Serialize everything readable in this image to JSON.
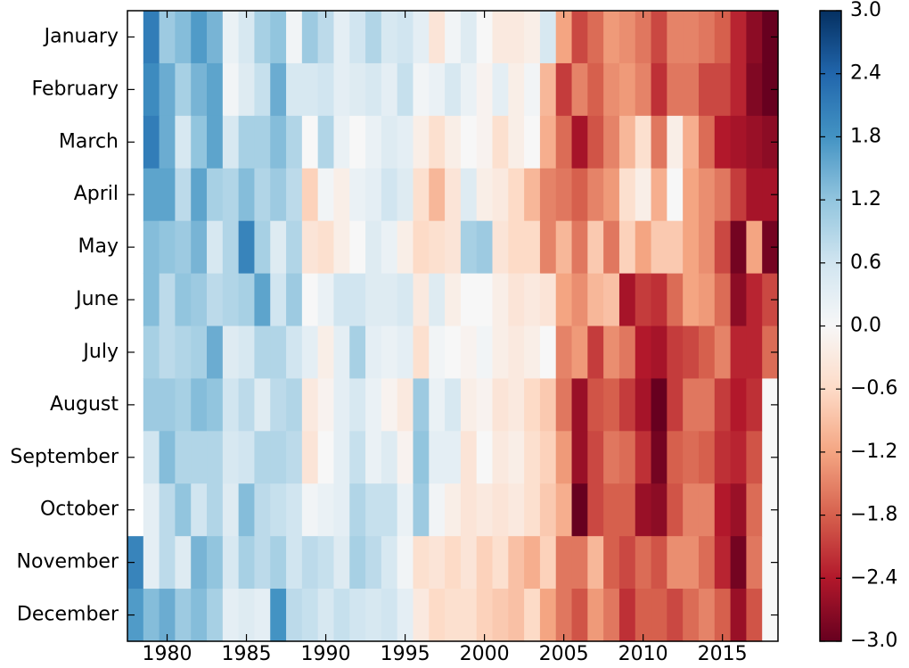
{
  "chart_data": {
    "type": "heatmap",
    "title": "",
    "xlabel": "",
    "ylabel": "",
    "x_range": [
      1978,
      2018
    ],
    "x_ticks": [
      "1980",
      "1985",
      "1990",
      "1995",
      "2000",
      "2005",
      "2010",
      "2015"
    ],
    "x_tick_values": [
      1980,
      1985,
      1990,
      1995,
      2000,
      2005,
      2010,
      2015
    ],
    "y_categories": [
      "January",
      "February",
      "March",
      "April",
      "May",
      "June",
      "July",
      "August",
      "September",
      "October",
      "November",
      "December"
    ],
    "colorbar": {
      "colormap": "RdBu",
      "min": -3.0,
      "max": 3.0,
      "ticks": [
        "3.0",
        "2.4",
        "1.8",
        "1.2",
        "0.6",
        "0.0",
        "−0.6",
        "−1.2",
        "−1.8",
        "−2.4",
        "−3.0"
      ],
      "tick_values": [
        3.0,
        2.4,
        1.8,
        1.2,
        0.6,
        0.0,
        -0.6,
        -1.2,
        -1.8,
        -2.4,
        -3.0
      ]
    },
    "values": [
      [
        null,
        2.1,
        1.1,
        1.3,
        1.7,
        1.4,
        0.2,
        0.5,
        1.0,
        1.2,
        0.1,
        1.1,
        0.8,
        0.3,
        0.6,
        0.9,
        0.5,
        0.6,
        0.3,
        -0.4,
        0.1,
        0.4,
        0.0,
        -0.3,
        -0.3,
        -0.2,
        0.5,
        -1.2,
        -2.0,
        -1.7,
        -1.3,
        -1.4,
        -1.6,
        -2.0,
        -1.5,
        -1.5,
        -1.6,
        -1.8,
        -2.3,
        -2.7,
        -3.0
      ],
      [
        null,
        1.9,
        1.5,
        1.0,
        1.4,
        1.6,
        0.1,
        0.4,
        0.7,
        1.5,
        0.5,
        0.5,
        0.6,
        0.3,
        0.4,
        0.5,
        0.3,
        0.7,
        0.1,
        0.2,
        0.5,
        0.2,
        -0.1,
        0.3,
        -0.2,
        0.1,
        -1.0,
        -2.1,
        -1.5,
        -1.8,
        -1.4,
        -1.3,
        -1.5,
        -2.2,
        -1.6,
        -1.6,
        -2.0,
        -2.0,
        -2.3,
        -2.8,
        -3.0
      ],
      [
        null,
        2.1,
        1.5,
        0.5,
        1.2,
        1.6,
        0.5,
        1.0,
        1.0,
        1.3,
        0.9,
        0.0,
        0.9,
        0.2,
        0.0,
        0.2,
        0.4,
        0.3,
        -0.2,
        -0.5,
        -0.2,
        0.0,
        -0.1,
        -0.5,
        -0.2,
        0.0,
        -1.1,
        -1.7,
        -2.5,
        -1.9,
        -1.5,
        -1.0,
        -0.5,
        -1.6,
        -0.2,
        -1.1,
        -1.7,
        -2.4,
        -2.5,
        -2.6,
        -2.7
      ],
      [
        null,
        1.6,
        1.6,
        0.8,
        1.6,
        1.0,
        0.9,
        1.3,
        0.9,
        1.1,
        0.8,
        -0.7,
        0.1,
        -0.2,
        0.2,
        0.3,
        0.6,
        0.4,
        -0.5,
        -1.0,
        -0.4,
        0.4,
        -0.2,
        -0.3,
        -0.6,
        -1.0,
        -1.5,
        -1.6,
        -1.8,
        -1.5,
        -1.3,
        -0.5,
        -0.2,
        -1.1,
        0.0,
        -1.2,
        -1.4,
        -1.6,
        -2.1,
        -2.5,
        -2.5
      ],
      [
        null,
        1.3,
        1.2,
        1.1,
        1.4,
        0.5,
        0.9,
        2.0,
        1.0,
        0.4,
        0.9,
        -0.4,
        -0.5,
        -0.2,
        0.0,
        0.4,
        0.2,
        -0.2,
        -0.6,
        -0.5,
        -0.4,
        1.0,
        1.1,
        -0.4,
        -0.6,
        -0.6,
        -1.5,
        -1.0,
        -1.6,
        -0.8,
        -1.6,
        -0.7,
        -1.2,
        -0.8,
        -0.8,
        -1.2,
        -1.4,
        -2.0,
        -2.9,
        -1.2,
        -2.9
      ],
      [
        null,
        1.3,
        0.8,
        1.2,
        1.1,
        0.8,
        0.9,
        1.0,
        1.6,
        0.6,
        1.1,
        0.0,
        0.2,
        0.6,
        0.6,
        0.4,
        0.4,
        0.5,
        -0.3,
        0.4,
        -0.2,
        0.0,
        0.0,
        -0.2,
        -0.4,
        -0.3,
        -0.4,
        -1.2,
        -1.4,
        -1.0,
        -0.9,
        -2.5,
        -2.1,
        -2.2,
        -1.7,
        -1.2,
        -1.3,
        -1.7,
        -2.7,
        -2.3,
        -2.0
      ],
      [
        null,
        1.0,
        0.8,
        0.9,
        1.0,
        1.5,
        0.4,
        0.5,
        0.9,
        0.9,
        0.6,
        0.3,
        -0.2,
        0.3,
        1.0,
        0.3,
        0.2,
        0.3,
        -0.5,
        0.1,
        0.0,
        -0.1,
        0.1,
        -0.2,
        -0.3,
        -0.2,
        0.0,
        -1.5,
        -1.3,
        -2.1,
        -1.4,
        -1.6,
        -2.4,
        -2.5,
        -2.1,
        -2.0,
        -1.8,
        -1.5,
        -2.3,
        -2.3,
        -1.7
      ],
      [
        null,
        1.1,
        1.1,
        1.0,
        1.3,
        1.2,
        0.6,
        0.8,
        0.4,
        0.8,
        0.9,
        -0.3,
        -0.1,
        0.3,
        0.5,
        0.2,
        -0.1,
        -0.3,
        1.1,
        0.2,
        0.5,
        -0.2,
        -0.1,
        -0.4,
        -0.3,
        -0.6,
        -0.8,
        -1.6,
        -2.6,
        -1.9,
        -1.8,
        -2.1,
        -2.5,
        -3.0,
        -2.1,
        -1.6,
        -1.6,
        -2.1,
        -2.4,
        -2.2,
        0.0
      ],
      [
        null,
        0.6,
        1.3,
        0.9,
        0.9,
        0.9,
        0.5,
        0.6,
        0.9,
        0.9,
        0.8,
        -0.4,
        0.0,
        0.3,
        0.7,
        0.2,
        0.4,
        -0.1,
        1.2,
        0.3,
        0.3,
        -0.4,
        0.0,
        -0.3,
        -0.2,
        -0.5,
        -0.7,
        -1.3,
        -2.6,
        -2.0,
        -1.6,
        -1.7,
        -2.2,
        -2.9,
        -1.8,
        -1.7,
        -1.8,
        -2.2,
        -2.3,
        -1.9,
        0.0
      ],
      [
        null,
        0.3,
        0.8,
        1.2,
        0.6,
        0.9,
        0.4,
        1.3,
        0.8,
        0.7,
        0.6,
        0.1,
        0.2,
        0.3,
        0.9,
        0.7,
        0.7,
        0.2,
        1.1,
        0.1,
        -0.2,
        -0.4,
        -0.3,
        -0.4,
        -0.3,
        -0.5,
        -0.8,
        -1.1,
        -3.0,
        -2.0,
        -1.8,
        -1.8,
        -2.6,
        -2.7,
        -1.9,
        -1.5,
        -1.5,
        -2.4,
        -2.6,
        -1.7,
        0.0
      ],
      [
        2.0,
        0.3,
        0.8,
        0.4,
        1.4,
        1.2,
        0.5,
        1.0,
        0.8,
        1.0,
        0.6,
        0.8,
        0.7,
        0.4,
        1.0,
        0.8,
        0.5,
        0.1,
        -0.5,
        -0.4,
        -0.6,
        -0.4,
        -0.7,
        -0.5,
        -0.9,
        -1.1,
        -0.7,
        -1.6,
        -1.6,
        -1.0,
        -1.8,
        -2.0,
        -1.7,
        -1.9,
        -1.4,
        -1.4,
        -1.7,
        -2.3,
        -2.9,
        -1.6,
        0.0
      ],
      [
        1.7,
        1.3,
        1.5,
        1.1,
        1.3,
        1.0,
        0.3,
        0.4,
        0.3,
        1.8,
        0.8,
        0.7,
        0.5,
        0.7,
        0.6,
        0.5,
        0.6,
        0.3,
        -0.3,
        -0.6,
        -0.5,
        -0.5,
        -0.7,
        -0.8,
        -0.9,
        -0.6,
        -1.2,
        -1.6,
        -1.9,
        -1.3,
        -1.6,
        -2.2,
        -1.8,
        -1.8,
        -2.0,
        -1.7,
        -1.5,
        -1.8,
        -2.6,
        -1.9,
        0.0
      ]
    ]
  }
}
